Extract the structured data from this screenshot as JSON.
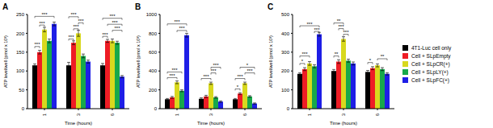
{
  "chart_data": [
    {
      "type": "bar",
      "title": "A",
      "x_label": "Time (hours)",
      "y_label": "ATP level/well (pmol x 10³)",
      "categories": [
        "1",
        "3",
        "6"
      ],
      "ylim": [
        0,
        250
      ],
      "yticks": [
        0,
        50,
        100,
        150,
        200,
        250
      ],
      "grid": false,
      "legend": "right",
      "series": [
        {
          "name": "4T1-Luc cell only",
          "color": "#000000",
          "values": [
            115,
            115,
            115
          ],
          "errors": [
            4,
            8,
            5
          ]
        },
        {
          "name": "Cell + SLpEmpty",
          "color": "#ee1c25",
          "values": [
            150,
            175,
            180
          ],
          "errors": [
            5,
            5,
            4
          ]
        },
        {
          "name": "Cell + SLpCR(+)",
          "color": "#d8d81e",
          "values": [
            210,
            200,
            180
          ],
          "errors": [
            6,
            8,
            5
          ]
        },
        {
          "name": "Cell + SLpLY(+)",
          "color": "#17a84b",
          "values": [
            180,
            140,
            175
          ],
          "errors": [
            5,
            5,
            4
          ]
        },
        {
          "name": "Cell + SLpFC(+)",
          "color": "#1e1ee6",
          "values": [
            225,
            125,
            85
          ],
          "errors": [
            5,
            4,
            3
          ]
        }
      ],
      "annotations": [
        {
          "category": "1",
          "from": "4T1-Luc cell only",
          "to": "Cell + SLpEmpty",
          "y": 165,
          "label": "***"
        },
        {
          "category": "1",
          "from": "Cell + SLpEmpty",
          "to": "Cell + SLpCR(+)",
          "y": 222,
          "label": "***"
        },
        {
          "category": "1",
          "from": "4T1-Luc cell only",
          "to": "Cell + SLpFC(+)",
          "y": 245,
          "label": "***"
        },
        {
          "category": "3",
          "from": "4T1-Luc cell only",
          "to": "Cell + SLpEmpty",
          "y": 185,
          "label": "***"
        },
        {
          "category": "3",
          "from": "Cell + SLpEmpty",
          "to": "Cell + SLpCR(+)",
          "y": 212,
          "label": "***"
        },
        {
          "category": "3",
          "from": "Cell + SLpCR(+)",
          "to": "Cell + SLpLY(+)",
          "y": 228,
          "label": "***"
        },
        {
          "category": "3",
          "from": "4T1-Luc cell only",
          "to": "Cell + SLpCR(+)",
          "y": 244,
          "label": "***"
        },
        {
          "category": "6",
          "from": "4T1-Luc cell only",
          "to": "Cell + SLpEmpty",
          "y": 192,
          "label": "***"
        },
        {
          "category": "6",
          "from": "Cell + SLpCR(+)",
          "to": "Cell + SLpFC(+)",
          "y": 208,
          "label": "***"
        },
        {
          "category": "6",
          "from": "Cell + SLpEmpty",
          "to": "Cell + SLpFC(+)",
          "y": 224,
          "label": "***"
        },
        {
          "category": "6",
          "from": "4T1-Luc cell only",
          "to": "Cell + SLpFC(+)",
          "y": 240,
          "label": "***"
        }
      ]
    },
    {
      "type": "bar",
      "title": "B",
      "x_label": "Time (hours)",
      "y_label": "ATP level/well (pmol x 10³)",
      "categories": [
        "1",
        "3",
        "6"
      ],
      "ylim": [
        0,
        1000
      ],
      "yticks": [
        0,
        200,
        400,
        600,
        800,
        1000
      ],
      "grid": false,
      "series": [
        {
          "name": "4T1-Luc cell only",
          "color": "#000000",
          "values": [
            100,
            105,
            100
          ],
          "errors": [
            8,
            10,
            8
          ]
        },
        {
          "name": "Cell + SLpEmpty",
          "color": "#ee1c25",
          "values": [
            120,
            130,
            160
          ],
          "errors": [
            10,
            12,
            10
          ]
        },
        {
          "name": "Cell + SLpCR(+)",
          "color": "#d8d81e",
          "values": [
            280,
            270,
            270
          ],
          "errors": [
            15,
            12,
            12
          ]
        },
        {
          "name": "Cell + SLpLY(+)",
          "color": "#17a84b",
          "values": [
            190,
            120,
            130
          ],
          "errors": [
            10,
            8,
            8
          ]
        },
        {
          "name": "Cell + SLpFC(+)",
          "color": "#1e1ee6",
          "values": [
            780,
            75,
            55
          ],
          "errors": [
            20,
            8,
            6
          ]
        }
      ],
      "annotations": [
        {
          "category": "1",
          "from": "4T1-Luc cell only",
          "to": "Cell + SLpCR(+)",
          "y": 330,
          "label": "***"
        },
        {
          "category": "1",
          "from": "4T1-Luc cell only",
          "to": "Cell + SLpLY(+)",
          "y": 390,
          "label": "***"
        },
        {
          "category": "1",
          "from": "Cell + SLpCR(+)",
          "to": "Cell + SLpFC(+)",
          "y": 830,
          "label": "***"
        },
        {
          "category": "1",
          "from": "4T1-Luc cell only",
          "to": "Cell + SLpFC(+)",
          "y": 900,
          "label": "***"
        },
        {
          "category": "3",
          "from": "4T1-Luc cell only",
          "to": "Cell + SLpCR(+)",
          "y": 320,
          "label": "***"
        },
        {
          "category": "3",
          "from": "Cell + SLpCR(+)",
          "to": "Cell + SLpLY(+)",
          "y": 380,
          "label": "***"
        },
        {
          "category": "3",
          "from": "Cell + SLpCR(+)",
          "to": "Cell + SLpFC(+)",
          "y": 440,
          "label": "***"
        },
        {
          "category": "6",
          "from": "4T1-Luc cell only",
          "to": "Cell + SLpEmpty",
          "y": 210,
          "label": "*"
        },
        {
          "category": "6",
          "from": "4T1-Luc cell only",
          "to": "Cell + SLpCR(+)",
          "y": 320,
          "label": "***"
        },
        {
          "category": "6",
          "from": "Cell + SLpCR(+)",
          "to": "Cell + SLpFC(+)",
          "y": 380,
          "label": "***"
        },
        {
          "category": "6",
          "from": "Cell + SLpEmpty",
          "to": "Cell + SLpFC(+)",
          "y": 440,
          "label": "*"
        }
      ]
    },
    {
      "type": "bar",
      "title": "C",
      "x_label": "Time (hours)",
      "y_label": "ATP level/well (pmol x 10³)",
      "categories": [
        "1",
        "3",
        "6"
      ],
      "ylim": [
        0,
        500
      ],
      "yticks": [
        0,
        100,
        200,
        300,
        400,
        500
      ],
      "grid": false,
      "series": [
        {
          "name": "4T1-Luc cell only",
          "color": "#000000",
          "values": [
            185,
            200,
            195
          ],
          "errors": [
            6,
            8,
            8
          ]
        },
        {
          "name": "Cell + SLpEmpty",
          "color": "#ee1c25",
          "values": [
            210,
            250,
            215
          ],
          "errors": [
            8,
            10,
            8
          ]
        },
        {
          "name": "Cell + SLpCR(+)",
          "color": "#d8d81e",
          "values": [
            240,
            370,
            230
          ],
          "errors": [
            10,
            12,
            8
          ]
        },
        {
          "name": "Cell + SLpLY(+)",
          "color": "#17a84b",
          "values": [
            225,
            255,
            210
          ],
          "errors": [
            8,
            8,
            8
          ]
        },
        {
          "name": "Cell + SLpFC(+)",
          "color": "#1e1ee6",
          "values": [
            395,
            240,
            185
          ],
          "errors": [
            10,
            8,
            6
          ]
        }
      ],
      "annotations": [
        {
          "category": "1",
          "from": "4T1-Luc cell only",
          "to": "Cell + SLpEmpty",
          "y": 240,
          "label": "*"
        },
        {
          "category": "1",
          "from": "4T1-Luc cell only",
          "to": "Cell + SLpCR(+)",
          "y": 280,
          "label": "***"
        },
        {
          "category": "1",
          "from": "Cell + SLpLY(+)",
          "to": "Cell + SLpFC(+)",
          "y": 410,
          "label": "***"
        },
        {
          "category": "1",
          "from": "4T1-Luc cell only",
          "to": "Cell + SLpFC(+)",
          "y": 440,
          "label": "***"
        },
        {
          "category": "3",
          "from": "4T1-Luc cell only",
          "to": "Cell + SLpEmpty",
          "y": 280,
          "label": "**"
        },
        {
          "category": "3",
          "from": "Cell + SLpCR(+)",
          "to": "Cell + SLpLY(+)",
          "y": 395,
          "label": "***"
        },
        {
          "category": "3",
          "from": "Cell + SLpEmpty",
          "to": "Cell + SLpCR(+)",
          "y": 425,
          "label": "***"
        },
        {
          "category": "3",
          "from": "4T1-Luc cell only",
          "to": "Cell + SLpCR(+)",
          "y": 455,
          "label": "**"
        },
        {
          "category": "6",
          "from": "4T1-Luc cell only",
          "to": "Cell + SLpEmpty",
          "y": 245,
          "label": "*"
        },
        {
          "category": "6",
          "from": "Cell + SLpCR(+)",
          "to": "Cell + SLpFC(+)",
          "y": 265,
          "label": "**"
        }
      ]
    }
  ]
}
